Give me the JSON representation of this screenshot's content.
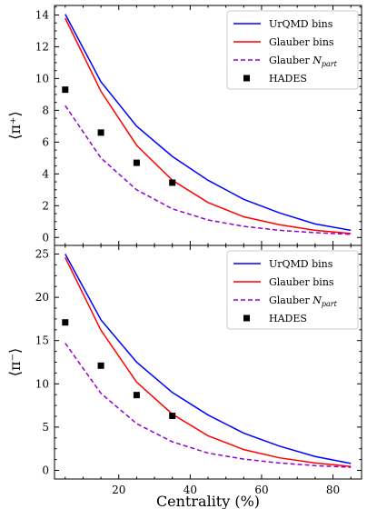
{
  "chart_data": [
    {
      "type": "line",
      "ylabel": "⟨π⁺⟩",
      "ylim": [
        -0.5,
        14.6
      ],
      "xlim": [
        2,
        88
      ],
      "yticks": [
        0,
        2,
        4,
        6,
        8,
        10,
        12,
        14
      ],
      "legend_position": "top-right",
      "series": [
        {
          "name": "UrQMD bins",
          "style": "solid",
          "color": "#0000ff",
          "x": [
            5,
            15,
            25,
            35,
            45,
            55,
            65,
            75,
            85
          ],
          "y": [
            14.05,
            9.8,
            7.0,
            5.1,
            3.6,
            2.4,
            1.55,
            0.85,
            0.45
          ]
        },
        {
          "name": "Glauber bins",
          "style": "solid",
          "color": "#ff0000",
          "x": [
            5,
            15,
            25,
            35,
            45,
            55,
            65,
            75,
            85
          ],
          "y": [
            13.8,
            9.2,
            5.8,
            3.6,
            2.2,
            1.3,
            0.8,
            0.45,
            0.25
          ]
        },
        {
          "name": "Glauber N_part",
          "style": "dashed",
          "color": "#9400d3",
          "x": [
            5,
            15,
            25,
            35,
            45,
            55,
            65,
            75,
            85
          ],
          "y": [
            8.3,
            5.0,
            3.0,
            1.8,
            1.1,
            0.7,
            0.45,
            0.3,
            0.2
          ]
        },
        {
          "name": "HADES",
          "style": "markers",
          "color": "#000000",
          "x": [
            5,
            15,
            25,
            35
          ],
          "y": [
            9.3,
            6.6,
            4.7,
            3.45
          ]
        }
      ]
    },
    {
      "type": "line",
      "ylabel": "⟨π⁻⟩",
      "xlabel": "Centrality (%)",
      "ylim": [
        -1,
        26
      ],
      "xlim": [
        2,
        88
      ],
      "yticks": [
        0,
        5,
        10,
        15,
        20,
        25
      ],
      "xticks": [
        20,
        40,
        60,
        80
      ],
      "legend_position": "top-right",
      "series": [
        {
          "name": "UrQMD bins",
          "style": "solid",
          "color": "#0000ff",
          "x": [
            5,
            15,
            25,
            35,
            45,
            55,
            65,
            75,
            85
          ],
          "y": [
            25.0,
            17.4,
            12.5,
            9.0,
            6.4,
            4.3,
            2.8,
            1.6,
            0.8
          ]
        },
        {
          "name": "Glauber bins",
          "style": "solid",
          "color": "#ff0000",
          "x": [
            5,
            15,
            25,
            35,
            45,
            55,
            65,
            75,
            85
          ],
          "y": [
            24.6,
            16.2,
            10.2,
            6.5,
            4.0,
            2.4,
            1.45,
            0.85,
            0.45
          ]
        },
        {
          "name": "Glauber N_part",
          "style": "dashed",
          "color": "#9400d3",
          "x": [
            5,
            15,
            25,
            35,
            45,
            55,
            65,
            75,
            85
          ],
          "y": [
            14.7,
            8.9,
            5.4,
            3.3,
            2.0,
            1.3,
            0.85,
            0.55,
            0.35
          ]
        },
        {
          "name": "HADES",
          "style": "markers",
          "color": "#000000",
          "x": [
            5,
            15,
            25,
            35
          ],
          "y": [
            17.1,
            12.1,
            8.7,
            6.3
          ]
        }
      ]
    }
  ]
}
